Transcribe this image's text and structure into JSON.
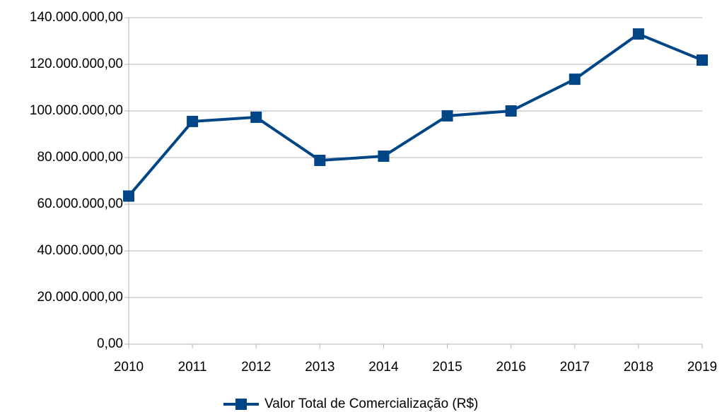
{
  "chart_data": {
    "type": "line",
    "categories": [
      "2010",
      "2011",
      "2012",
      "2013",
      "2014",
      "2015",
      "2016",
      "2017",
      "2018",
      "2019"
    ],
    "series": [
      {
        "name": "Valor Total de Comercialização (R$)",
        "color": "#004586",
        "values": [
          63500000,
          95500000,
          97300000,
          78800000,
          80600000,
          97900000,
          100000000,
          113600000,
          133000000,
          121800000
        ]
      }
    ],
    "ylim": [
      0,
      140000000
    ],
    "yticks": [
      {
        "value": 0,
        "label": "0,00"
      },
      {
        "value": 20000000,
        "label": "20.000.000,00"
      },
      {
        "value": 40000000,
        "label": "40.000.000,00"
      },
      {
        "value": 60000000,
        "label": "60.000.000,00"
      },
      {
        "value": 80000000,
        "label": "80.000.000,00"
      },
      {
        "value": 100000000,
        "label": "100.000.000,00"
      },
      {
        "value": 120000000,
        "label": "120.000.000,00"
      },
      {
        "value": 140000000,
        "label": "140.000.000,00"
      }
    ],
    "grid": true,
    "legend": "bottom"
  }
}
